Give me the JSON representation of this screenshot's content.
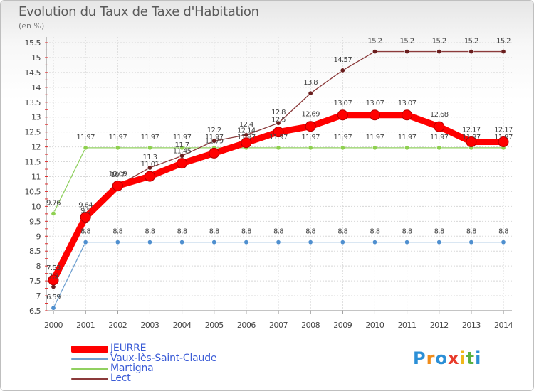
{
  "chart_data": {
    "type": "line",
    "title": "Evolution du Taux de Taxe d'Habitation",
    "ylabel": "(en %)",
    "xlabel": "",
    "ylim": [
      6.5,
      15.5
    ],
    "yticks": [
      "6.5",
      "7",
      "7.5",
      "8",
      "8.5",
      "9",
      "9.5",
      "10",
      "10.5",
      "11",
      "11.5",
      "12",
      "12.5",
      "13",
      "13.5",
      "14",
      "14.5",
      "15",
      "15.5"
    ],
    "categories": [
      "2000",
      "2001",
      "2002",
      "2003",
      "2004",
      "2005",
      "2006",
      "2007",
      "2008",
      "2009",
      "2010",
      "2011",
      "2012",
      "2013",
      "2014"
    ],
    "series": [
      {
        "name": "JEURRE",
        "color": "#ff0000",
        "values": [
          7.53,
          9.64,
          10.69,
          11.01,
          11.45,
          11.79,
          12.14,
          12.5,
          12.69,
          13.07,
          13.07,
          13.07,
          12.68,
          12.17,
          12.17
        ],
        "labels": [
          "7.53",
          "9.64",
          "10.69",
          "11.01",
          "11.45",
          "11.79",
          "12.14",
          "12.5",
          "12.69",
          "13.07",
          "13.07",
          "13.07",
          "12.68",
          "12.17",
          "12.17"
        ]
      },
      {
        "name": "Vaux-lès-Saint-Claude",
        "color": "#6fa0d0",
        "values": [
          6.59,
          8.8,
          8.8,
          8.8,
          8.8,
          8.8,
          8.8,
          8.8,
          8.8,
          8.8,
          8.8,
          8.8,
          8.8,
          8.8,
          8.8
        ],
        "labels": [
          "6.59",
          "8.8",
          "8.8",
          "8.8",
          "8.8",
          "8.8",
          "8.8",
          "8.8",
          "8.8",
          "8.8",
          "8.8",
          "8.8",
          "8.8",
          "8.8",
          "8.8"
        ]
      },
      {
        "name": "Martigna",
        "color": "#90d060",
        "values": [
          9.76,
          11.97,
          11.97,
          11.97,
          11.97,
          11.97,
          11.97,
          11.97,
          11.97,
          11.97,
          11.97,
          11.97,
          11.97,
          11.97,
          11.97
        ],
        "labels": [
          "9.76",
          "11.97",
          "11.97",
          "11.97",
          "11.97",
          "11.97",
          "11.97",
          "11.97",
          "11.97",
          "11.97",
          "11.97",
          "11.97",
          "11.97",
          "11.97",
          "11.97"
        ]
      },
      {
        "name": "Lect",
        "color": "#8b3a3a",
        "values": [
          7.3,
          9.5,
          10.7,
          11.3,
          11.7,
          12.2,
          12.4,
          12.8,
          13.8,
          14.57,
          15.2,
          15.2,
          15.2,
          15.2,
          15.2
        ],
        "labels": [
          "7.3",
          "9.5",
          "10.7",
          "11.3",
          "11.7",
          "12.2",
          "12.4",
          "12.8",
          "13.8",
          "14.57",
          "15.2",
          "15.2",
          "15.2",
          "15.2",
          "15.2"
        ]
      }
    ]
  },
  "logo": {
    "letters": [
      "P",
      "r",
      "o",
      "x",
      "i",
      "t",
      "i"
    ],
    "colors": [
      "#2b8fd6",
      "#f08c1a",
      "#2b8fd6",
      "#e83a2a",
      "#f0b81a",
      "#5ab040",
      "#2b8fd6"
    ]
  }
}
